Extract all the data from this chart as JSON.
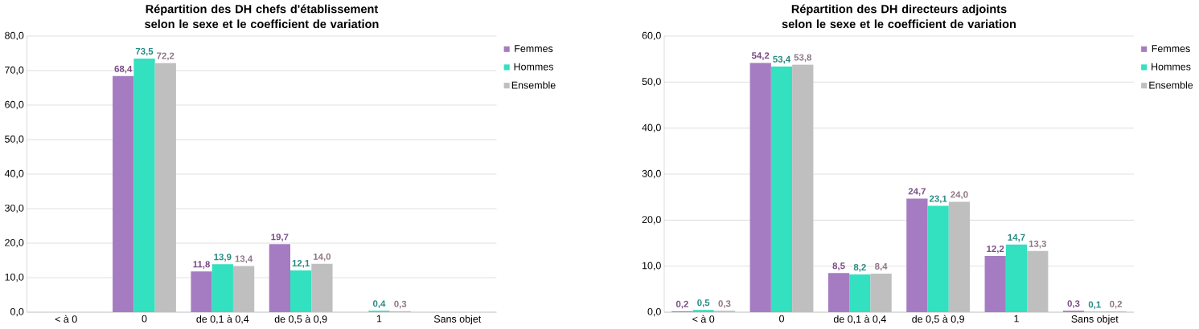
{
  "chart_data": [
    {
      "type": "bar",
      "title": "Répartition des DH chefs d'établissement selon le sexe et le coefficient de variation",
      "categories": [
        "< à 0",
        "0",
        "de 0,1 à 0,4",
        "de 0,5 à 0,9",
        "1",
        "Sans objet"
      ],
      "series": [
        {
          "name": "Femmes",
          "color": "#a57cc2",
          "values": [
            null,
            68.4,
            11.8,
            19.7,
            null,
            null
          ],
          "value_labels": [
            null,
            "68,4",
            "11,8",
            "19,7",
            null,
            null
          ]
        },
        {
          "name": "Hommes",
          "color": "#33e0bf",
          "values": [
            null,
            73.5,
            13.9,
            12.1,
            0.4,
            null
          ],
          "value_labels": [
            null,
            "73,5",
            "13,9",
            "12,1",
            "0,4",
            null
          ]
        },
        {
          "name": "Ensemble",
          "color": "#bfbfbf",
          "values": [
            null,
            72.2,
            13.4,
            14.0,
            0.3,
            null
          ],
          "value_labels": [
            null,
            "72,2",
            "13,4",
            "14,0",
            "0,3",
            null
          ]
        }
      ],
      "ylim": [
        0,
        80
      ],
      "yticks": [
        {
          "value": 0,
          "label": "0,0"
        },
        {
          "value": 10,
          "label": "10,0"
        },
        {
          "value": 20,
          "label": "20,0"
        },
        {
          "value": 30,
          "label": "30,0"
        },
        {
          "value": 40,
          "label": "40,0"
        },
        {
          "value": 50,
          "label": "50,0"
        },
        {
          "value": 60,
          "label": "60,0"
        },
        {
          "value": 70,
          "label": "70,0"
        },
        {
          "value": 80,
          "label": "80,0"
        }
      ],
      "grid": "y",
      "legend": "right"
    },
    {
      "type": "bar",
      "title": "Répartition des DH directeurs adjoints selon le sexe et le coefficient de variation",
      "categories": [
        "< à 0",
        "0",
        "de 0,1 à 0,4",
        "de 0,5 à 0,9",
        "1",
        "Sans objet"
      ],
      "series": [
        {
          "name": "Femmes",
          "color": "#a57cc2",
          "values": [
            0.2,
            54.2,
            8.5,
            24.7,
            12.2,
            0.3
          ],
          "value_labels": [
            "0,2",
            "54,2",
            "8,5",
            "24,7",
            "12,2",
            "0,3"
          ]
        },
        {
          "name": "Hommes",
          "color": "#33e0bf",
          "values": [
            0.5,
            53.4,
            8.2,
            23.1,
            14.7,
            0.1
          ],
          "value_labels": [
            "0,5",
            "53,4",
            "8,2",
            "23,1",
            "14,7",
            "0,1"
          ]
        },
        {
          "name": "Ensemble",
          "color": "#bfbfbf",
          "values": [
            0.3,
            53.8,
            8.4,
            24.0,
            13.3,
            0.2
          ],
          "value_labels": [
            "0,3",
            "53,8",
            "8,4",
            "24,0",
            "13,3",
            "0,2"
          ]
        }
      ],
      "ylim": [
        0,
        60
      ],
      "yticks": [
        {
          "value": 0,
          "label": "0,0"
        },
        {
          "value": 10,
          "label": "10,0"
        },
        {
          "value": 20,
          "label": "20,0"
        },
        {
          "value": 30,
          "label": "30,0"
        },
        {
          "value": 40,
          "label": "40,0"
        },
        {
          "value": 50,
          "label": "50,0"
        },
        {
          "value": 60,
          "label": "60,0"
        }
      ],
      "grid": "y",
      "legend": "right"
    }
  ]
}
